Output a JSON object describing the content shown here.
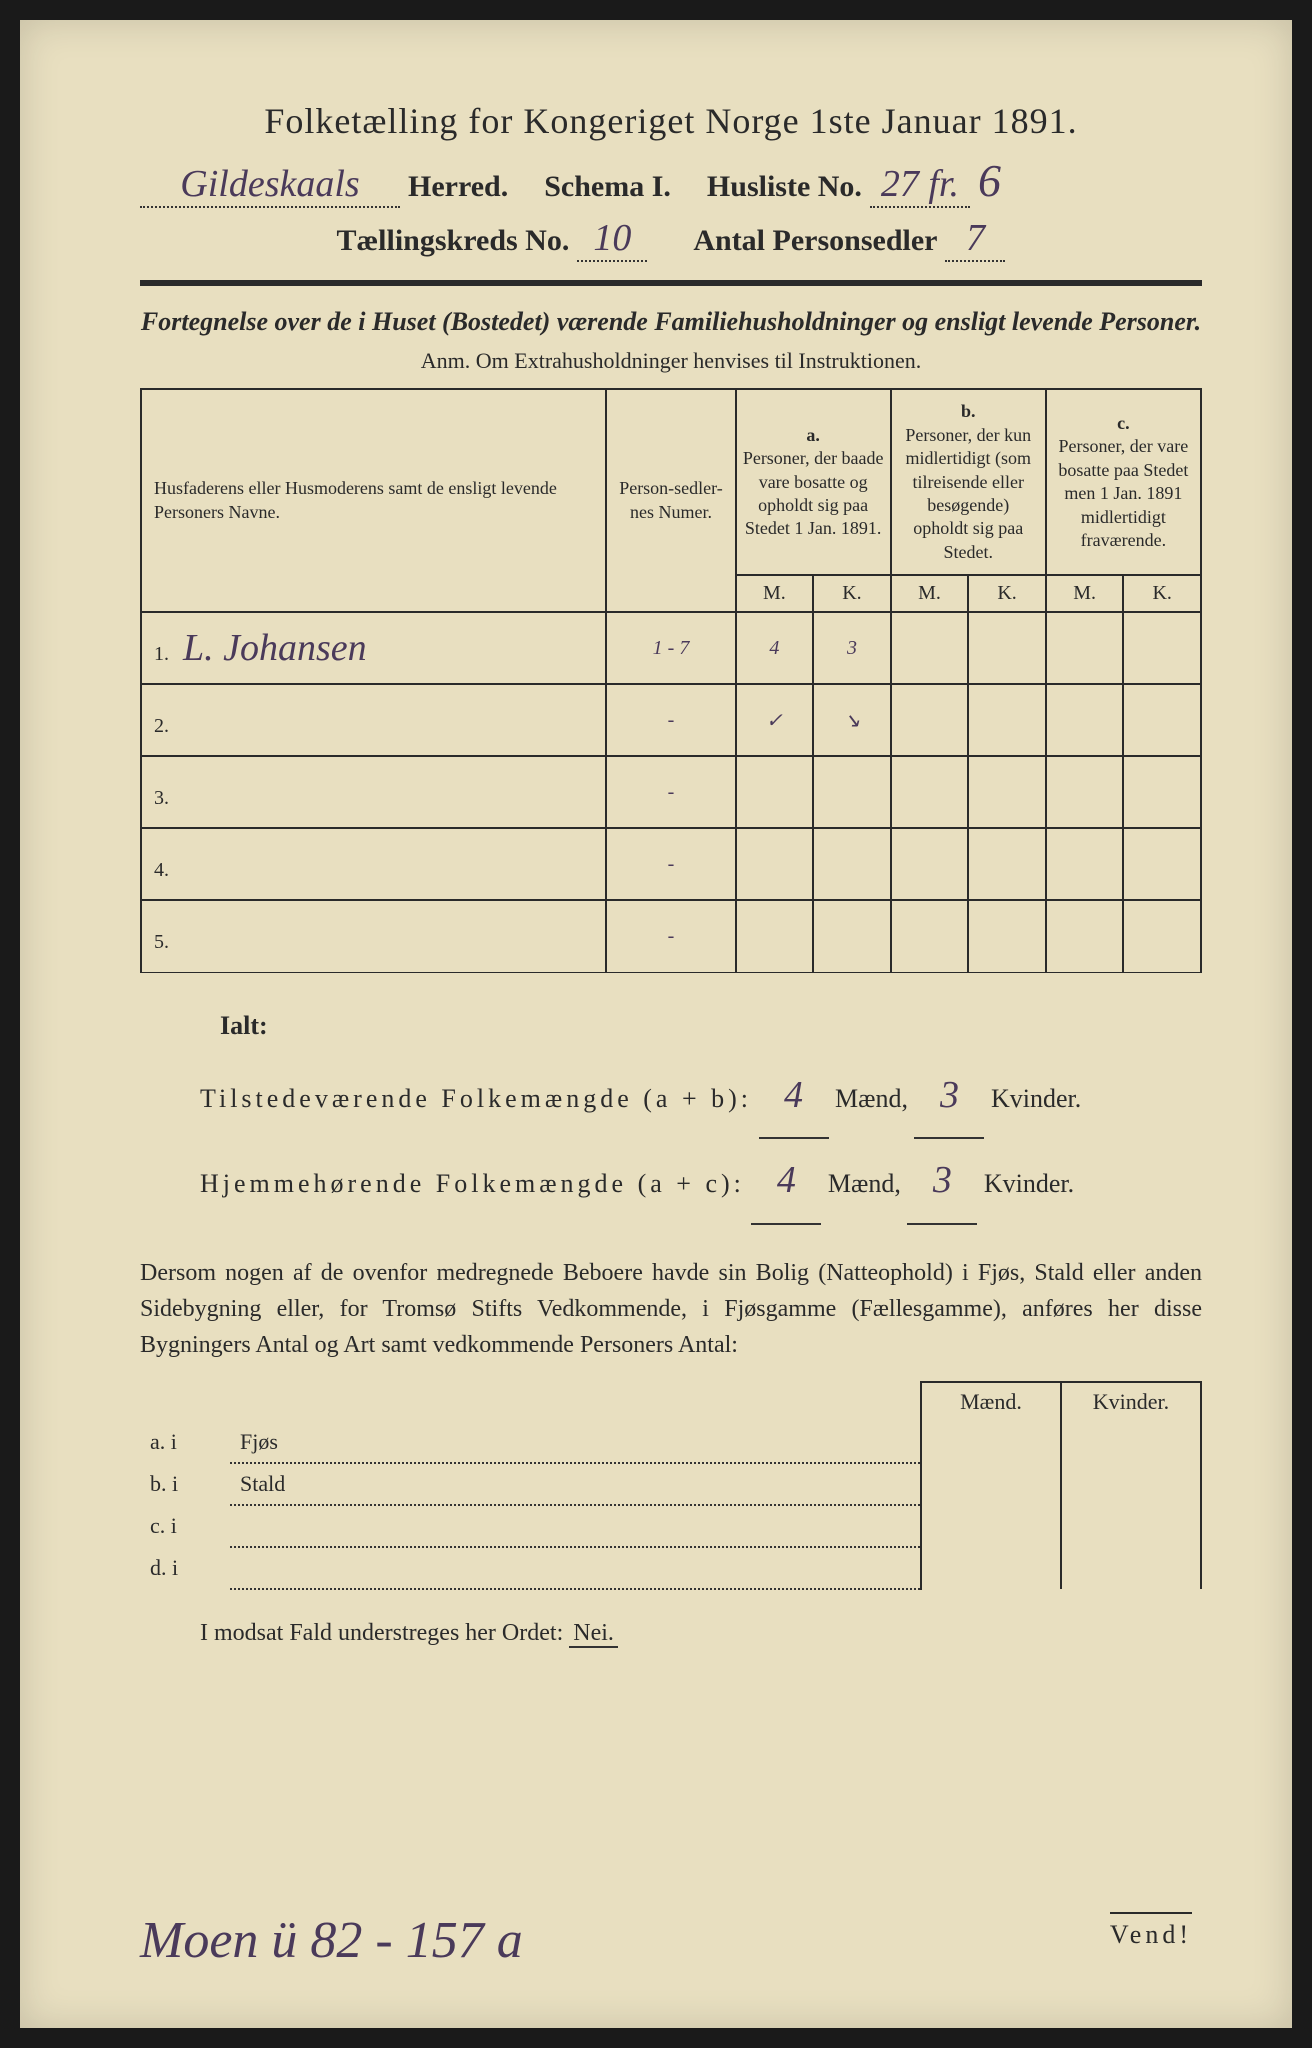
{
  "title": "Folketælling for Kongeriget Norge 1ste Januar 1891.",
  "header": {
    "herred_value": "Gildeskaals",
    "herred_label": "Herred.",
    "schema_label": "Schema I.",
    "husliste_label": "Husliste No.",
    "husliste_value": "27 fr.",
    "husliste_suffix": "6",
    "kreds_label": "Tællingskreds No.",
    "kreds_value": "10",
    "antal_label": "Antal Personsedler",
    "antal_value": "7"
  },
  "subtitle": "Fortegnelse over de i Huset (Bostedet) værende Familiehusholdninger og ensligt levende Personer.",
  "anm": "Anm.  Om Extrahusholdninger henvises til Instruktionen.",
  "table": {
    "col_name": "Husfaderens eller Husmoderens samt de ensligt levende Personers Navne.",
    "col_num": "Person-sedler-nes Numer.",
    "col_a_head": "a.",
    "col_a": "Personer, der baade vare bosatte og opholdt sig paa Stedet 1 Jan. 1891.",
    "col_b_head": "b.",
    "col_b": "Personer, der kun midlertidigt (som tilreisende eller besøgende) opholdt sig paa Stedet.",
    "col_c_head": "c.",
    "col_c": "Personer, der vare bosatte paa Stedet men 1 Jan. 1891 midlertidigt fraværende.",
    "mk_m": "M.",
    "mk_k": "K.",
    "rows": [
      {
        "n": "1.",
        "name": "L. Johansen",
        "num": "1 - 7",
        "a_m": "4",
        "a_k": "3",
        "b_m": "",
        "b_k": "",
        "c_m": "",
        "c_k": ""
      },
      {
        "n": "2.",
        "name": "",
        "num": "-",
        "a_m": "✓",
        "a_k": "↘",
        "b_m": "",
        "b_k": "",
        "c_m": "",
        "c_k": ""
      },
      {
        "n": "3.",
        "name": "",
        "num": "-",
        "a_m": "",
        "a_k": "",
        "b_m": "",
        "b_k": "",
        "c_m": "",
        "c_k": ""
      },
      {
        "n": "4.",
        "name": "",
        "num": "-",
        "a_m": "",
        "a_k": "",
        "b_m": "",
        "b_k": "",
        "c_m": "",
        "c_k": ""
      },
      {
        "n": "5.",
        "name": "",
        "num": "-",
        "a_m": "",
        "a_k": "",
        "b_m": "",
        "b_k": "",
        "c_m": "",
        "c_k": ""
      }
    ]
  },
  "ialt": {
    "label": "Ialt:",
    "line1_a": "Tilstedeværende Folkemængde (a + b):",
    "line1_m": "4",
    "line1_k": "3",
    "line2_a": "Hjemmehørende Folkemængde (a + c):",
    "line2_m": "4",
    "line2_k": "3",
    "maend": "Mænd,",
    "kvinder": "Kvinder."
  },
  "para": "Dersom nogen af de ovenfor medregnede Beboere havde sin Bolig (Natteophold) i Fjøs, Stald eller anden Sidebygning eller, for Tromsø Stifts Vedkommende, i Fjøsgamme (Fællesgamme), anføres her disse Bygningers Antal og Art samt vedkommende Personers Antal:",
  "fjos": {
    "head_m": "Mænd.",
    "head_k": "Kvinder.",
    "rows": [
      {
        "l": "a.  i",
        "r": "Fjøs"
      },
      {
        "l": "b.  i",
        "r": "Stald"
      },
      {
        "l": "c.  i",
        "r": ""
      },
      {
        "l": "d.  i",
        "r": ""
      }
    ]
  },
  "nei_line": "I modsat Fald understreges her Ordet:",
  "nei": "Nei.",
  "bottom_hand": "Moen ü 82 - 157 a",
  "vend": "Vend!",
  "colors": {
    "paper": "#e8dfc0",
    "ink": "#2a2a2a",
    "handwriting": "#4a3a5a",
    "background": "#1a1a1a"
  }
}
